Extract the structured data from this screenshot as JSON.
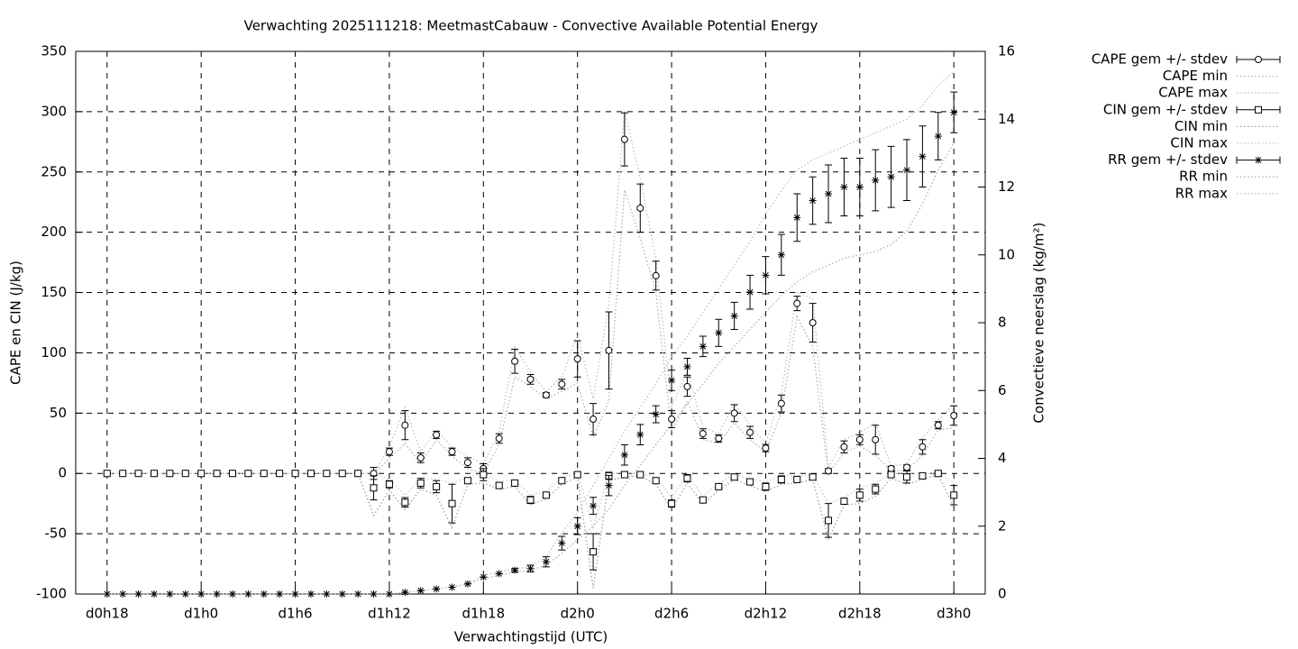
{
  "chart_data": {
    "type": "errorbar",
    "title": "Verwachting 2025111218: MeetmastCabauw - Convective Available Potential Energy",
    "xlabel": "Verwachtingstijd (UTC)",
    "ylabel": "CAPE en CIN (J/kg)",
    "y2label": "Convectieve neerslag (kg/m²)",
    "x": [
      18,
      19,
      20,
      21,
      22,
      23,
      24,
      25,
      26,
      27,
      28,
      29,
      30,
      31,
      32,
      33,
      34,
      35,
      36,
      37,
      38,
      39,
      40,
      41,
      42,
      43,
      44,
      45,
      46,
      47,
      48,
      49,
      50,
      51,
      52,
      53,
      54,
      55,
      56,
      57,
      58,
      59,
      60,
      61,
      62,
      63,
      64,
      65,
      66,
      67,
      68,
      69,
      70,
      71,
      72
    ],
    "xlim": [
      16,
      74
    ],
    "xticks": [
      {
        "value": 18,
        "label": "d0h18"
      },
      {
        "value": 24,
        "label": "d1h0"
      },
      {
        "value": 30,
        "label": "d1h6"
      },
      {
        "value": 36,
        "label": "d1h12"
      },
      {
        "value": 42,
        "label": "d1h18"
      },
      {
        "value": 48,
        "label": "d2h0"
      },
      {
        "value": 54,
        "label": "d2h6"
      },
      {
        "value": 60,
        "label": "d2h12"
      },
      {
        "value": 66,
        "label": "d2h18"
      },
      {
        "value": 72,
        "label": "d3h0"
      }
    ],
    "ylim": [
      -100,
      350
    ],
    "yticks": [
      -100,
      -50,
      0,
      50,
      100,
      150,
      200,
      250,
      300,
      350
    ],
    "y2lim": [
      0,
      16
    ],
    "y2ticks": [
      0,
      2,
      4,
      6,
      8,
      10,
      12,
      14,
      16
    ],
    "grid": true,
    "legend": "outside-top-right",
    "series": [
      {
        "name": "CAPE gem +/- stdev",
        "style": "errorbars",
        "marker": "circle",
        "color": "#000000",
        "values": [
          0,
          0,
          0,
          0,
          0,
          0,
          0,
          0,
          0,
          0,
          0,
          0,
          0,
          0,
          0,
          0,
          0,
          0,
          18,
          40,
          13,
          32,
          18,
          9,
          4,
          29,
          93,
          78,
          65,
          74,
          95,
          45,
          102,
          277,
          220,
          164,
          45,
          72,
          33,
          29,
          50,
          34,
          21,
          58,
          141,
          125,
          2,
          22,
          28,
          28,
          4,
          5,
          22,
          40,
          48
        ],
        "errors": [
          0,
          0,
          0,
          0,
          0,
          0,
          0,
          0,
          0,
          0,
          0,
          0,
          0,
          0,
          0,
          0,
          0,
          5,
          3,
          12,
          4,
          3,
          3,
          4,
          4,
          4,
          10,
          4,
          2,
          4,
          15,
          13,
          32,
          22,
          20,
          12,
          7,
          8,
          4,
          3,
          7,
          5,
          3,
          7,
          6,
          16,
          2,
          5,
          4,
          12,
          2,
          2,
          6,
          3,
          8
        ]
      },
      {
        "name": "CAPE min",
        "style": "dotted",
        "color": "#b0b0b0",
        "values": [
          0,
          0,
          0,
          0,
          0,
          0,
          0,
          0,
          0,
          0,
          0,
          0,
          0,
          0,
          0,
          0,
          0,
          0,
          12,
          25,
          8,
          28,
          14,
          4,
          0,
          24,
          80,
          72,
          62,
          68,
          75,
          30,
          60,
          235,
          195,
          150,
          35,
          60,
          28,
          25,
          42,
          28,
          18,
          50,
          130,
          105,
          0,
          17,
          23,
          15,
          2,
          3,
          15,
          36,
          38
        ]
      },
      {
        "name": "CAPE max",
        "style": "dotted",
        "color": "#c0c0c0",
        "values": [
          0,
          0,
          0,
          0,
          0,
          0,
          0,
          0,
          0,
          0,
          0,
          0,
          0,
          0,
          0,
          0,
          0,
          0,
          22,
          55,
          18,
          36,
          22,
          14,
          8,
          34,
          105,
          84,
          68,
          80,
          115,
          62,
          140,
          300,
          245,
          178,
          55,
          85,
          38,
          33,
          58,
          40,
          25,
          66,
          150,
          145,
          5,
          28,
          34,
          42,
          6,
          8,
          30,
          44,
          58
        ]
      },
      {
        "name": "CIN gem +/- stdev",
        "style": "errorbars",
        "marker": "square",
        "color": "#000000",
        "values": [
          0,
          0,
          0,
          0,
          0,
          0,
          0,
          0,
          0,
          0,
          0,
          0,
          0,
          0,
          0,
          0,
          0,
          -12,
          -9,
          -24,
          -8,
          -11,
          -25,
          -6,
          -1,
          -10,
          -8,
          -22,
          -18,
          -6,
          -1,
          -65,
          -2,
          -1,
          -1,
          -6,
          -25,
          -4,
          -22,
          -11,
          -3,
          -7,
          -11,
          -5,
          -5,
          -3,
          -39,
          -23,
          -18,
          -13,
          -1,
          -3,
          -2,
          0,
          -18
        ],
        "errors": [
          0,
          0,
          0,
          0,
          0,
          0,
          0,
          0,
          0,
          0,
          0,
          0,
          0,
          0,
          0,
          0,
          0,
          10,
          3,
          4,
          4,
          5,
          16,
          2,
          5,
          2,
          2,
          3,
          2,
          2,
          2,
          15,
          3,
          2,
          1,
          2,
          3,
          3,
          2,
          2,
          2,
          2,
          3,
          3,
          2,
          2,
          14,
          2,
          5,
          4,
          2,
          5,
          2,
          1,
          8
        ]
      },
      {
        "name": "CIN min",
        "style": "dotted",
        "color": "#a0a0a0",
        "values": [
          0,
          0,
          0,
          0,
          0,
          0,
          0,
          0,
          0,
          0,
          0,
          0,
          0,
          0,
          0,
          0,
          0,
          -35,
          -14,
          -30,
          -13,
          -18,
          -45,
          -9,
          -8,
          -13,
          -11,
          -26,
          -21,
          -9,
          -3,
          -95,
          -6,
          -3,
          -2,
          -9,
          -30,
          -8,
          -25,
          -14,
          -5,
          -10,
          -15,
          -9,
          -8,
          -5,
          -55,
          -26,
          -25,
          -19,
          -4,
          -9,
          -5,
          -1,
          -28
        ]
      },
      {
        "name": "CIN max",
        "style": "dotted",
        "color": "#c8c8c8",
        "values": [
          0,
          0,
          0,
          0,
          0,
          0,
          0,
          0,
          0,
          0,
          0,
          0,
          0,
          0,
          0,
          0,
          0,
          0,
          -5,
          -18,
          -4,
          -5,
          -8,
          -3,
          0,
          -7,
          -5,
          -18,
          -15,
          -3,
          0,
          -45,
          0,
          0,
          0,
          -3,
          -20,
          -1,
          -19,
          -8,
          -1,
          -4,
          -7,
          -2,
          -2,
          -1,
          -25,
          -20,
          -12,
          -8,
          0,
          0,
          0,
          0,
          -8
        ]
      },
      {
        "name": "RR gem +/- stdev",
        "style": "errorbars",
        "marker": "star",
        "color": "#000000",
        "axis": "y2",
        "values": [
          0,
          0,
          0,
          0,
          0,
          0,
          0,
          0,
          0,
          0,
          0,
          0,
          0,
          0,
          0,
          0,
          0,
          0,
          0,
          0.05,
          0.1,
          0.15,
          0.2,
          0.3,
          0.5,
          0.6,
          0.7,
          0.75,
          0.95,
          1.5,
          2.0,
          2.6,
          3.2,
          4.1,
          4.7,
          5.3,
          6.3,
          6.7,
          7.3,
          7.7,
          8.2,
          8.9,
          9.4,
          10.0,
          11.1,
          11.6,
          11.8,
          12.0,
          12.0,
          12.2,
          12.3,
          12.5,
          12.9,
          13.5,
          14.2
        ],
        "errors": [
          0,
          0,
          0,
          0,
          0,
          0,
          0,
          0,
          0,
          0,
          0,
          0,
          0,
          0,
          0,
          0,
          0,
          0,
          0,
          0,
          0,
          0,
          0,
          0,
          0,
          0,
          0.05,
          0.1,
          0.15,
          0.2,
          0.25,
          0.25,
          0.3,
          0.3,
          0.3,
          0.25,
          0.3,
          0.25,
          0.3,
          0.4,
          0.4,
          0.5,
          0.55,
          0.6,
          0.7,
          0.7,
          0.85,
          0.85,
          0.85,
          0.9,
          0.9,
          0.9,
          0.9,
          0.7,
          0.6
        ]
      },
      {
        "name": "RR min",
        "style": "dotted",
        "color": "#b0b0b0",
        "axis": "y2",
        "values": [
          0,
          0,
          0,
          0,
          0,
          0,
          0,
          0,
          0,
          0,
          0,
          0,
          0,
          0,
          0,
          0,
          0,
          0,
          0,
          0.05,
          0.1,
          0.15,
          0.2,
          0.3,
          0.45,
          0.55,
          0.65,
          0.7,
          0.85,
          1.2,
          1.6,
          2.0,
          2.5,
          3.2,
          3.8,
          4.4,
          5.0,
          5.6,
          6.2,
          6.8,
          7.3,
          7.8,
          8.3,
          8.8,
          9.2,
          9.5,
          9.7,
          9.9,
          10.0,
          10.1,
          10.3,
          10.7,
          11.5,
          12.5,
          13.3
        ]
      },
      {
        "name": "RR max",
        "style": "dotted",
        "color": "#c0c0c0",
        "axis": "y2",
        "values": [
          0,
          0,
          0,
          0,
          0,
          0,
          0,
          0,
          0,
          0,
          0,
          0,
          0,
          0,
          0,
          0,
          0,
          0,
          0,
          0.05,
          0.1,
          0.15,
          0.2,
          0.3,
          0.55,
          0.65,
          0.75,
          0.8,
          1.1,
          1.8,
          2.4,
          3.2,
          4.0,
          4.8,
          5.5,
          6.2,
          7.0,
          7.6,
          8.3,
          9.0,
          9.7,
          10.4,
          11.2,
          11.9,
          12.5,
          12.8,
          13.0,
          13.2,
          13.4,
          13.6,
          13.8,
          14.0,
          14.4,
          15.0,
          15.4
        ]
      }
    ]
  }
}
